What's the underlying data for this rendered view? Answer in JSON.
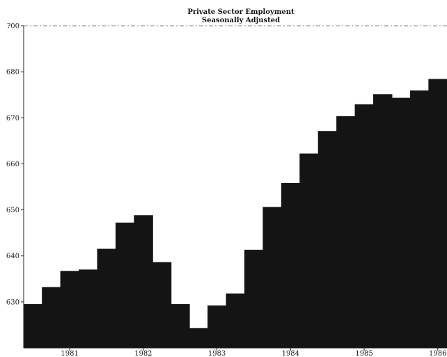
{
  "chart_data": {
    "type": "bar",
    "title": "Private Sector Employment",
    "subtitle": "Seasonally Adjusted",
    "ylim": [
      620,
      690
    ],
    "y_ticks": [
      630,
      640,
      650,
      660,
      670,
      680
    ],
    "y_top_label": "?00",
    "x_tick_labels": [
      "1981",
      "1982",
      "1983",
      "1984",
      "1985",
      "1986"
    ],
    "x_tick_index": [
      2,
      6,
      10,
      14,
      18,
      22
    ],
    "bar_color": "#141414",
    "grid": false,
    "values": [
      629.5,
      633.2,
      636.7,
      637.0,
      641.5,
      647.2,
      648.8,
      638.6,
      629.5,
      624.3,
      629.2,
      631.8,
      641.3,
      650.6,
      655.8,
      662.2,
      667.1,
      670.3,
      672.9,
      675.1,
      674.3,
      675.9,
      678.4
    ]
  }
}
